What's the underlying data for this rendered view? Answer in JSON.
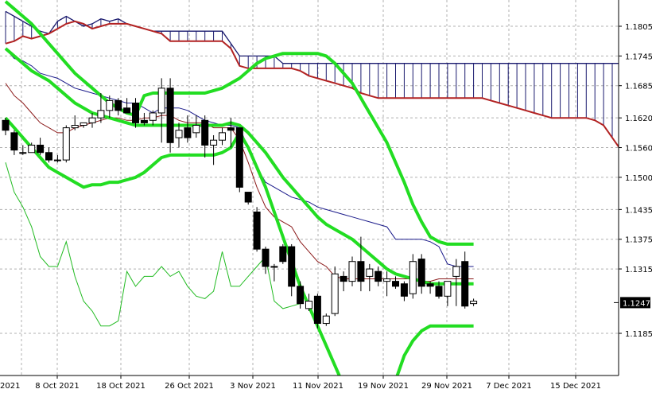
{
  "chart_data": {
    "type": "candlestick",
    "x_tick_labels": [
      "8 Oct 2021",
      "18 Oct 2021",
      "26 Oct 2021",
      "3 Nov 2021",
      "11 Nov 2021",
      "19 Nov 2021",
      "29 Nov 2021",
      "7 Dec 2021",
      "15 Dec 2021"
    ],
    "left_edge_label": "2021",
    "y_tick_labels": [
      "1.1805",
      "1.1745",
      "1.1685",
      "1.1620",
      "1.1560",
      "1.1500",
      "1.1435",
      "1.1375",
      "1.1315",
      "1.1185"
    ],
    "y_tick_values": [
      1.1805,
      1.1745,
      1.1685,
      1.162,
      1.156,
      1.15,
      1.1435,
      1.1375,
      1.1315,
      1.1185
    ],
    "ylim": [
      1.116,
      1.184
    ],
    "grid": true,
    "current_price": "1.1247",
    "current_price_value": 1.1247,
    "colors": {
      "up_fill": "#ffffff",
      "down_fill": "#000000",
      "candle_outline": "#000000",
      "bollinger": "#22dd22",
      "cloud_hatch": "#1a1a6e",
      "senkou_b": "#b22222",
      "tenkan": "#8b1a1a",
      "kijun": "#1a1a8a",
      "chikou": "#22bb22",
      "price_box": "#000000",
      "grid": "#b0b0b0"
    },
    "candles": [
      [
        1.1615,
        1.162,
        1.1585,
        1.1595
      ],
      [
        1.159,
        1.1595,
        1.1545,
        1.1555
      ],
      [
        1.155,
        1.1565,
        1.1545,
        1.155
      ],
      [
        1.155,
        1.157,
        1.155,
        1.1565
      ],
      [
        1.1565,
        1.158,
        1.1545,
        1.155
      ],
      [
        1.155,
        1.156,
        1.153,
        1.1535
      ],
      [
        1.1535,
        1.1545,
        1.153,
        1.1535
      ],
      [
        1.1535,
        1.1605,
        1.153,
        1.16
      ],
      [
        1.16,
        1.1625,
        1.1595,
        1.1605
      ],
      [
        1.1605,
        1.161,
        1.16,
        1.161
      ],
      [
        1.161,
        1.163,
        1.16,
        1.162
      ],
      [
        1.162,
        1.167,
        1.161,
        1.1635
      ],
      [
        1.1635,
        1.1665,
        1.162,
        1.1655
      ],
      [
        1.1655,
        1.166,
        1.1625,
        1.1635
      ],
      [
        1.164,
        1.166,
        1.163,
        1.163
      ],
      [
        1.165,
        1.166,
        1.16,
        1.161
      ],
      [
        1.1615,
        1.163,
        1.1605,
        1.161
      ],
      [
        1.1615,
        1.1635,
        1.1605,
        1.163
      ],
      [
        1.163,
        1.17,
        1.157,
        1.168
      ],
      [
        1.168,
        1.17,
        1.155,
        1.157
      ],
      [
        1.158,
        1.161,
        1.156,
        1.1595
      ],
      [
        1.16,
        1.1625,
        1.157,
        1.158
      ],
      [
        1.159,
        1.1625,
        1.158,
        1.1605
      ],
      [
        1.1615,
        1.1625,
        1.154,
        1.1565
      ],
      [
        1.1565,
        1.1585,
        1.1525,
        1.1575
      ],
      [
        1.1575,
        1.16,
        1.1565,
        1.159
      ],
      [
        1.16,
        1.162,
        1.156,
        1.1595
      ],
      [
        1.16,
        1.16,
        1.147,
        1.148
      ],
      [
        1.147,
        1.147,
        1.1445,
        1.145
      ],
      [
        1.143,
        1.144,
        1.135,
        1.1355
      ],
      [
        1.1355,
        1.136,
        1.1305,
        1.132
      ],
      [
        1.132,
        1.1325,
        1.129,
        1.132
      ],
      [
        1.136,
        1.1365,
        1.1325,
        1.133
      ],
      [
        1.136,
        1.1365,
        1.126,
        1.128
      ],
      [
        1.128,
        1.129,
        1.1235,
        1.1245
      ],
      [
        1.1235,
        1.1265,
        1.123,
        1.125
      ],
      [
        1.126,
        1.1265,
        1.1195,
        1.1205
      ],
      [
        1.1205,
        1.1225,
        1.12,
        1.122
      ],
      [
        1.1225,
        1.132,
        1.122,
        1.1305
      ],
      [
        1.13,
        1.131,
        1.127,
        1.129
      ],
      [
        1.129,
        1.134,
        1.128,
        1.133
      ],
      [
        1.133,
        1.138,
        1.127,
        1.129
      ],
      [
        1.13,
        1.1325,
        1.127,
        1.1315
      ],
      [
        1.131,
        1.132,
        1.128,
        1.129
      ],
      [
        1.129,
        1.131,
        1.126,
        1.1295
      ],
      [
        1.129,
        1.13,
        1.1275,
        1.128
      ],
      [
        1.1285,
        1.129,
        1.125,
        1.126
      ],
      [
        1.1265,
        1.1345,
        1.1255,
        1.133
      ],
      [
        1.1335,
        1.1345,
        1.1265,
        1.128
      ],
      [
        1.1285,
        1.129,
        1.1265,
        1.128
      ],
      [
        1.128,
        1.129,
        1.1255,
        1.126
      ],
      [
        1.126,
        1.1285,
        1.124,
        1.129
      ],
      [
        1.13,
        1.1335,
        1.124,
        1.132
      ],
      [
        1.133,
        1.135,
        1.1235,
        1.124
      ],
      [
        1.1245,
        1.1255,
        1.124,
        1.125
      ]
    ],
    "indicators": {
      "senkou_a": [
        1.1835,
        1.1825,
        1.1815,
        1.1805,
        1.1795,
        1.179,
        1.1815,
        1.1825,
        1.1815,
        1.1805,
        1.181,
        1.182,
        1.1815,
        1.182,
        1.181,
        1.1805,
        1.18,
        1.1795,
        1.1795,
        1.1795,
        1.1795,
        1.1795,
        1.1795,
        1.1795,
        1.1795,
        1.1795,
        1.177,
        1.1745,
        1.1745,
        1.1745,
        1.1745,
        1.1745,
        1.173,
        1.173,
        1.173,
        1.173,
        1.173,
        1.173,
        1.173,
        1.173,
        1.173,
        1.173,
        1.173,
        1.173,
        1.173,
        1.173,
        1.173,
        1.173,
        1.173,
        1.173,
        1.173,
        1.173,
        1.173,
        1.173,
        1.173,
        1.173,
        1.173,
        1.173,
        1.173,
        1.173,
        1.173,
        1.173,
        1.173,
        1.173,
        1.173,
        1.173,
        1.173,
        1.173,
        1.173,
        1.173,
        1.173,
        1.173,
        1.1725,
        1.1705,
        1.17,
        1.1665
      ],
      "senkou_b": [
        1.177,
        1.1775,
        1.1785,
        1.178,
        1.1785,
        1.179,
        1.18,
        1.181,
        1.1815,
        1.181,
        1.18,
        1.1805,
        1.181,
        1.181,
        1.181,
        1.1805,
        1.18,
        1.1795,
        1.179,
        1.1775,
        1.1775,
        1.1775,
        1.1775,
        1.1775,
        1.1775,
        1.1775,
        1.176,
        1.1725,
        1.172,
        1.172,
        1.172,
        1.172,
        1.172,
        1.172,
        1.1715,
        1.1705,
        1.17,
        1.1695,
        1.169,
        1.1685,
        1.168,
        1.167,
        1.1665,
        1.166,
        1.166,
        1.166,
        1.166,
        1.166,
        1.166,
        1.166,
        1.166,
        1.166,
        1.166,
        1.166,
        1.166,
        1.166,
        1.1655,
        1.165,
        1.1645,
        1.164,
        1.1635,
        1.163,
        1.1625,
        1.162,
        1.162,
        1.162,
        1.162,
        1.162,
        1.1615,
        1.1605,
        1.158,
        1.1555,
        1.1545,
        1.152,
        1.1495
      ],
      "kijun": [
        1.176,
        1.174,
        1.1735,
        1.1725,
        1.171,
        1.1705,
        1.17,
        1.169,
        1.168,
        1.1675,
        1.167,
        1.1665,
        1.166,
        1.1655,
        1.165,
        1.165,
        1.164,
        1.163,
        1.164,
        1.164,
        1.164,
        1.1635,
        1.1625,
        1.1615,
        1.161,
        1.1605,
        1.1605,
        1.16,
        1.156,
        1.152,
        1.149,
        1.148,
        1.147,
        1.146,
        1.1455,
        1.145,
        1.144,
        1.1435,
        1.143,
        1.1425,
        1.142,
        1.1415,
        1.141,
        1.1405,
        1.14,
        1.1375,
        1.1375,
        1.1375,
        1.1375,
        1.137,
        1.136,
        1.1325,
        1.132,
        1.132,
        1.132
      ],
      "tenkan": [
        1.169,
        1.1665,
        1.165,
        1.163,
        1.161,
        1.16,
        1.159,
        1.159,
        1.16,
        1.1605,
        1.161,
        1.1615,
        1.162,
        1.162,
        1.1615,
        1.1615,
        1.162,
        1.162,
        1.1625,
        1.1625,
        1.1615,
        1.161,
        1.161,
        1.161,
        1.16,
        1.16,
        1.16,
        1.1575,
        1.153,
        1.148,
        1.144,
        1.142,
        1.141,
        1.14,
        1.137,
        1.135,
        1.133,
        1.132,
        1.13,
        1.1295,
        1.1295,
        1.1295,
        1.1295,
        1.1295,
        1.1295,
        1.1295,
        1.1295,
        1.1295,
        1.129,
        1.129,
        1.1295,
        1.1295,
        1.1295,
        1.1295,
        1.1295
      ],
      "chikou": [
        1.153,
        1.147,
        1.144,
        1.14,
        1.134,
        1.132,
        1.132,
        1.137,
        1.13,
        1.125,
        1.123,
        1.12,
        1.12,
        1.121,
        1.131,
        1.128,
        1.13,
        1.13,
        1.132,
        1.13,
        1.131,
        1.128,
        1.126,
        1.1255,
        1.127,
        1.135,
        1.128,
        1.128,
        1.13,
        1.132,
        1.134,
        1.125,
        1.1235,
        1.124,
        1.1245
      ],
      "bb_upper": [
        1.1855,
        1.184,
        1.1825,
        1.181,
        1.179,
        1.177,
        1.175,
        1.173,
        1.171,
        1.1695,
        1.168,
        1.1665,
        1.165,
        1.164,
        1.163,
        1.1625,
        1.1665,
        1.167,
        1.167,
        1.167,
        1.167,
        1.167,
        1.167,
        1.167,
        1.1675,
        1.168,
        1.169,
        1.17,
        1.1715,
        1.173,
        1.174,
        1.1745,
        1.175,
        1.175,
        1.175,
        1.175,
        1.175,
        1.1745,
        1.173,
        1.171,
        1.169,
        1.166,
        1.163,
        1.16,
        1.157,
        1.153,
        1.149,
        1.1445,
        1.141,
        1.138,
        1.137,
        1.1365,
        1.1365,
        1.1365,
        1.1365
      ],
      "bb_middle": [
        1.176,
        1.1745,
        1.173,
        1.1715,
        1.1705,
        1.1695,
        1.168,
        1.1665,
        1.165,
        1.164,
        1.163,
        1.1625,
        1.162,
        1.1615,
        1.161,
        1.1605,
        1.1605,
        1.1605,
        1.1605,
        1.1605,
        1.1605,
        1.1605,
        1.1605,
        1.1605,
        1.1605,
        1.1605,
        1.161,
        1.1605,
        1.159,
        1.157,
        1.155,
        1.1525,
        1.15,
        1.148,
        1.146,
        1.144,
        1.142,
        1.1405,
        1.1395,
        1.1385,
        1.1375,
        1.136,
        1.1345,
        1.133,
        1.1315,
        1.1305,
        1.13,
        1.1295,
        1.129,
        1.1285,
        1.1285,
        1.1285,
        1.1285,
        1.1285,
        1.1285
      ],
      "bb_lower": [
        1.162,
        1.16,
        1.158,
        1.156,
        1.154,
        1.152,
        1.151,
        1.15,
        1.149,
        1.148,
        1.1485,
        1.1485,
        1.149,
        1.149,
        1.1495,
        1.15,
        1.151,
        1.1525,
        1.154,
        1.1545,
        1.1545,
        1.1545,
        1.1545,
        1.1545,
        1.1545,
        1.155,
        1.156,
        1.159,
        1.156,
        1.152,
        1.148,
        1.143,
        1.138,
        1.133,
        1.128,
        1.124,
        1.12,
        1.116,
        1.112,
        1.108,
        1.105,
        1.103,
        1.103,
        1.1035,
        1.106,
        1.109,
        1.114,
        1.117,
        1.119,
        1.12,
        1.12,
        1.12,
        1.12,
        1.12,
        1.12
      ]
    }
  }
}
